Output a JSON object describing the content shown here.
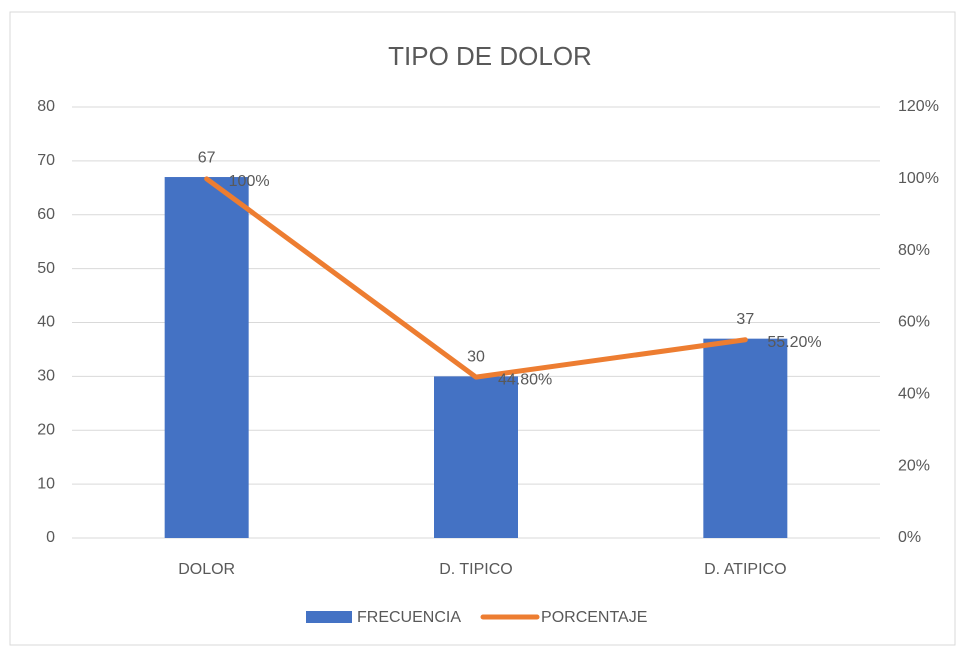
{
  "chart_data": {
    "type": "combo",
    "title": "TIPO DE DOLOR",
    "categories": [
      "DOLOR",
      "D. TIPICO",
      "D. ATIPICO"
    ],
    "series": [
      {
        "name": "FRECUENCIA",
        "type": "bar",
        "color": "#4472c4",
        "values": [
          67,
          30,
          37
        ]
      },
      {
        "name": "PORCENTAJE",
        "type": "line",
        "axis": "y2",
        "color": "#ed7d31",
        "values": [
          100,
          44.8,
          55.2
        ],
        "value_labels": [
          "100%",
          "44.80%",
          "55.20%"
        ]
      }
    ],
    "ylim": [
      0,
      80
    ],
    "yticks": [
      0,
      10,
      20,
      30,
      40,
      50,
      60,
      70,
      80
    ],
    "y2lim": [
      0,
      120
    ],
    "y2ticks": [
      {
        "value": 0,
        "label": "0%"
      },
      {
        "value": 20,
        "label": "20%"
      },
      {
        "value": 40,
        "label": "40%"
      },
      {
        "value": 60,
        "label": "60%"
      },
      {
        "value": 80,
        "label": "80%"
      },
      {
        "value": 100,
        "label": "100%"
      },
      {
        "value": 120,
        "label": "120%"
      }
    ],
    "grid": true,
    "legend": "bottom"
  }
}
